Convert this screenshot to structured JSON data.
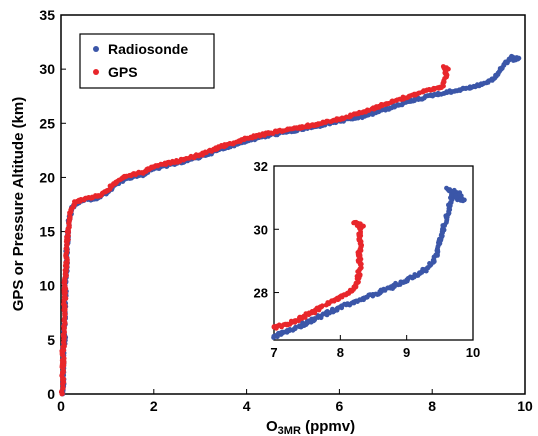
{
  "chart_data": [
    {
      "type": "scatter",
      "title": "",
      "xlabel_main": "O",
      "xlabel_sub": "3MR",
      "xlabel_unit": " (ppmv)",
      "ylabel": "GPS or Pressure Altitude (km)",
      "xlim": [
        0,
        10
      ],
      "ylim": [
        0,
        35
      ],
      "xticks": [
        "0",
        "2",
        "4",
        "6",
        "8",
        "10"
      ],
      "yticks": [
        "0",
        "5",
        "10",
        "15",
        "20",
        "25",
        "30",
        "35"
      ],
      "legend_position": "top-left",
      "series": [
        {
          "name": "Radiosonde",
          "color": "#3b56a8",
          "points": [
            [
              0.03,
              0.0
            ],
            [
              0.05,
              1.0
            ],
            [
              0.04,
              2.0
            ],
            [
              0.06,
              3.0
            ],
            [
              0.05,
              4.0
            ],
            [
              0.08,
              5.0
            ],
            [
              0.07,
              6.0
            ],
            [
              0.09,
              7.0
            ],
            [
              0.08,
              8.0
            ],
            [
              0.1,
              9.0
            ],
            [
              0.09,
              10.0
            ],
            [
              0.11,
              11.0
            ],
            [
              0.12,
              12.0
            ],
            [
              0.12,
              13.0
            ],
            [
              0.14,
              14.0
            ],
            [
              0.16,
              15.0
            ],
            [
              0.17,
              16.0
            ],
            [
              0.22,
              17.0
            ],
            [
              0.32,
              17.6
            ],
            [
              0.5,
              17.9
            ],
            [
              0.8,
              18.1
            ],
            [
              1.0,
              18.6
            ],
            [
              1.2,
              19.4
            ],
            [
              1.4,
              19.9
            ],
            [
              1.8,
              20.3
            ],
            [
              2.0,
              20.8
            ],
            [
              2.5,
              21.3
            ],
            [
              3.0,
              21.9
            ],
            [
              3.5,
              22.7
            ],
            [
              4.0,
              23.4
            ],
            [
              4.5,
              23.9
            ],
            [
              5.0,
              24.3
            ],
            [
              5.5,
              24.7
            ],
            [
              6.0,
              25.2
            ],
            [
              6.5,
              25.6
            ],
            [
              7.0,
              26.3
            ],
            [
              7.5,
              27.0
            ],
            [
              8.0,
              27.6
            ],
            [
              8.5,
              28.0
            ],
            [
              9.0,
              28.5
            ],
            [
              9.3,
              29.0
            ],
            [
              9.45,
              29.8
            ],
            [
              9.6,
              30.6
            ],
            [
              9.7,
              31.1
            ],
            [
              9.85,
              31.0
            ],
            [
              9.75,
              30.8
            ]
          ]
        },
        {
          "name": "GPS",
          "color": "#e8262b",
          "points": [
            [
              0.02,
              0.0
            ],
            [
              0.04,
              1.0
            ],
            [
              0.03,
              2.0
            ],
            [
              0.05,
              3.0
            ],
            [
              0.04,
              4.0
            ],
            [
              0.07,
              5.0
            ],
            [
              0.06,
              6.0
            ],
            [
              0.08,
              7.0
            ],
            [
              0.07,
              8.0
            ],
            [
              0.09,
              9.0
            ],
            [
              0.08,
              10.0
            ],
            [
              0.1,
              11.0
            ],
            [
              0.11,
              12.0
            ],
            [
              0.12,
              13.0
            ],
            [
              0.13,
              14.0
            ],
            [
              0.15,
              15.0
            ],
            [
              0.17,
              16.0
            ],
            [
              0.21,
              17.0
            ],
            [
              0.3,
              17.7
            ],
            [
              0.5,
              18.0
            ],
            [
              0.8,
              18.3
            ],
            [
              1.0,
              18.8
            ],
            [
              1.2,
              19.6
            ],
            [
              1.4,
              20.1
            ],
            [
              1.8,
              20.5
            ],
            [
              2.0,
              21.0
            ],
            [
              2.5,
              21.5
            ],
            [
              3.0,
              22.1
            ],
            [
              3.5,
              22.9
            ],
            [
              4.0,
              23.6
            ],
            [
              4.5,
              24.1
            ],
            [
              5.0,
              24.5
            ],
            [
              5.5,
              24.9
            ],
            [
              6.0,
              25.4
            ],
            [
              6.5,
              26.0
            ],
            [
              7.0,
              26.8
            ],
            [
              7.5,
              27.5
            ],
            [
              7.8,
              27.9
            ],
            [
              8.0,
              28.1
            ],
            [
              8.2,
              28.3
            ],
            [
              8.25,
              28.8
            ],
            [
              8.3,
              29.4
            ],
            [
              8.28,
              29.9
            ],
            [
              8.25,
              30.2
            ],
            [
              8.35,
              30.0
            ]
          ]
        }
      ]
    },
    {
      "type": "scatter",
      "title": "",
      "xlim": [
        7,
        10
      ],
      "ylim": [
        26.5,
        32
      ],
      "xticks": [
        "7",
        "8",
        "9",
        "10"
      ],
      "yticks": [
        "28",
        "30",
        "32"
      ],
      "series": [
        {
          "name": "Radiosonde",
          "color": "#3b56a8",
          "points": [
            [
              7.0,
              26.6
            ],
            [
              7.1,
              26.7
            ],
            [
              7.2,
              26.8
            ],
            [
              7.4,
              26.95
            ],
            [
              7.6,
              27.15
            ],
            [
              7.8,
              27.35
            ],
            [
              8.0,
              27.55
            ],
            [
              8.2,
              27.7
            ],
            [
              8.4,
              27.85
            ],
            [
              8.6,
              28.0
            ],
            [
              8.8,
              28.2
            ],
            [
              9.0,
              28.4
            ],
            [
              9.2,
              28.6
            ],
            [
              9.35,
              28.85
            ],
            [
              9.45,
              29.2
            ],
            [
              9.5,
              29.6
            ],
            [
              9.55,
              30.0
            ],
            [
              9.6,
              30.4
            ],
            [
              9.65,
              30.8
            ],
            [
              9.7,
              31.2
            ],
            [
              9.8,
              31.1
            ],
            [
              9.85,
              30.9
            ],
            [
              9.75,
              31.0
            ],
            [
              9.6,
              31.3
            ]
          ]
        },
        {
          "name": "GPS",
          "color": "#e8262b",
          "points": [
            [
              7.0,
              26.9
            ],
            [
              7.1,
              26.95
            ],
            [
              7.2,
              27.0
            ],
            [
              7.4,
              27.2
            ],
            [
              7.6,
              27.4
            ],
            [
              7.7,
              27.55
            ],
            [
              7.9,
              27.75
            ],
            [
              8.0,
              27.85
            ],
            [
              8.1,
              27.95
            ],
            [
              8.2,
              28.1
            ],
            [
              8.25,
              28.3
            ],
            [
              8.28,
              28.6
            ],
            [
              8.3,
              28.9
            ],
            [
              8.27,
              29.2
            ],
            [
              8.32,
              29.5
            ],
            [
              8.28,
              29.8
            ],
            [
              8.3,
              30.0
            ],
            [
              8.25,
              30.2
            ],
            [
              8.35,
              30.1
            ],
            [
              8.2,
              30.2
            ]
          ]
        }
      ]
    }
  ]
}
